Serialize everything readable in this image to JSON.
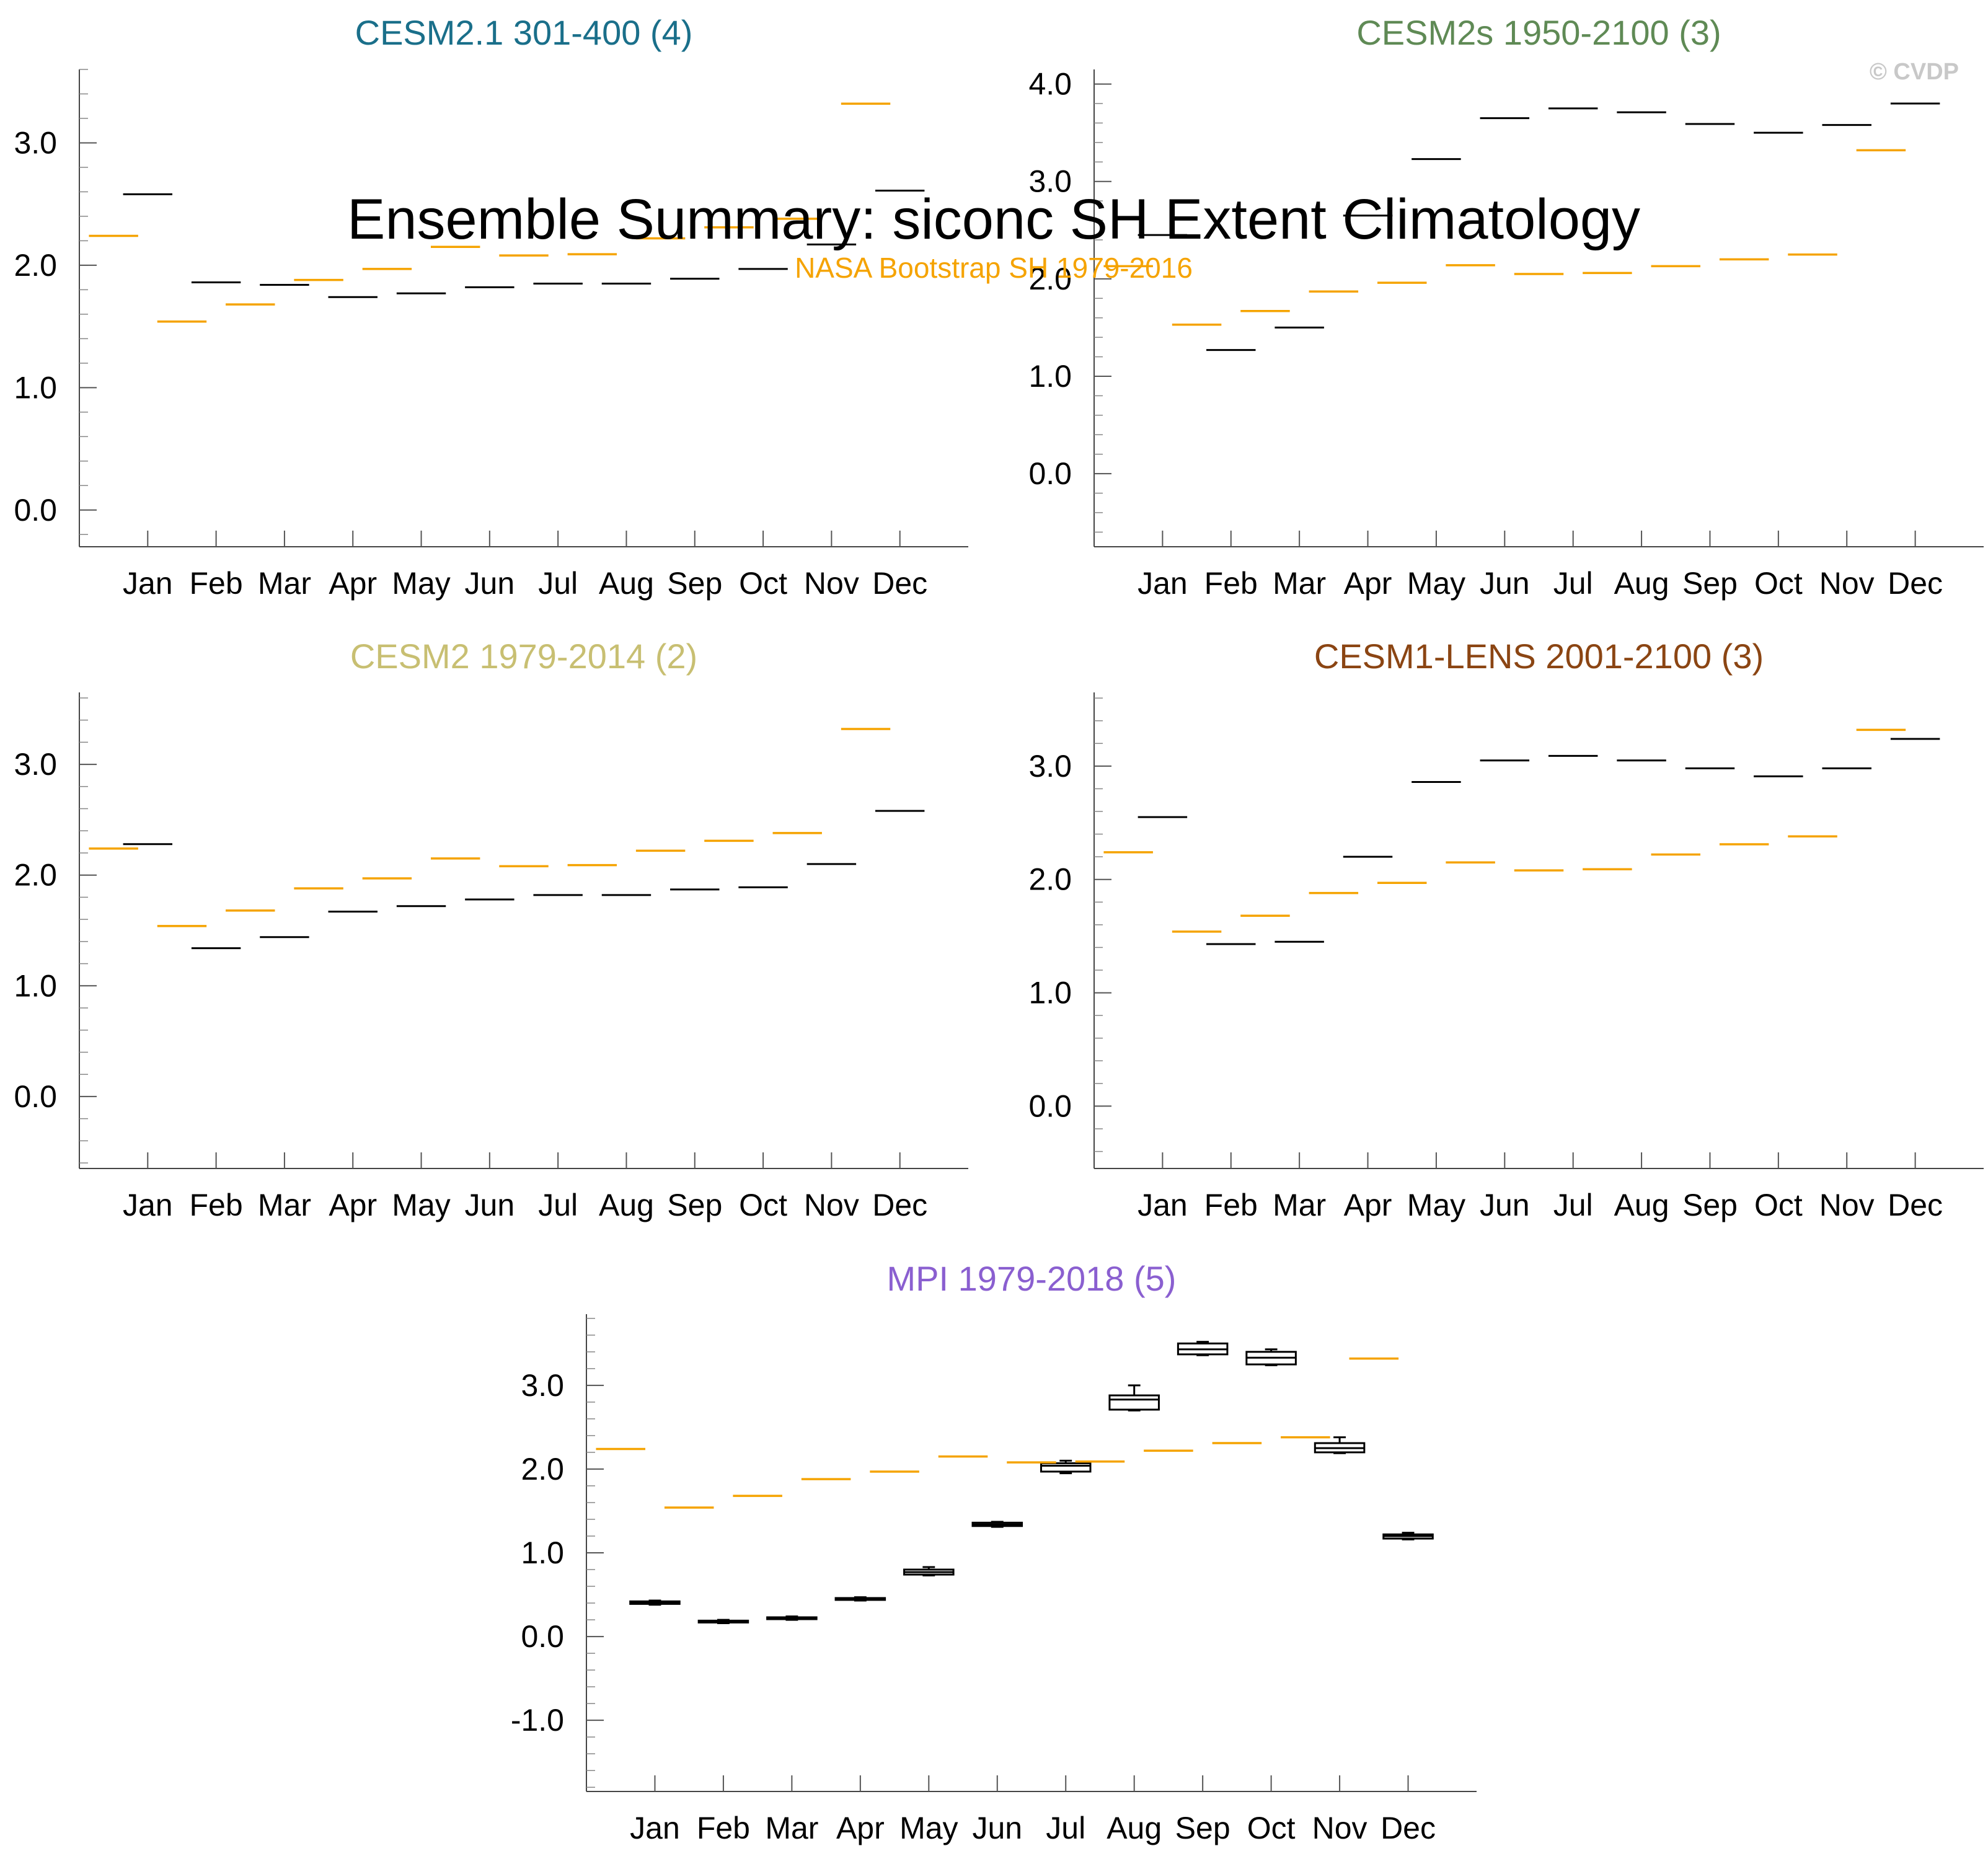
{
  "figure": {
    "title": "Ensemble Summary: siconc SH Extent Climatology",
    "observation_label": "NASA Bootstrap SH 1979-2016",
    "watermark": "© CVDP"
  },
  "colors": {
    "observation": "#f5a300",
    "model": "#000000",
    "title_cesm21": "#1a6f8a",
    "title_cesm2s": "#5f8a55",
    "title_cesm2": "#c8bf72",
    "title_cesm1": "#8b4513",
    "title_mpi": "#8a5fd0",
    "watermark": "#c8c8c8"
  },
  "chart_data": [
    {
      "type": "box",
      "title": "CESM2.1 301-400 (4)",
      "categories": [
        "Jan",
        "Feb",
        "Mar",
        "Apr",
        "May",
        "Jun",
        "Jul",
        "Aug",
        "Sep",
        "Oct",
        "Nov",
        "Dec"
      ],
      "ylim": [
        -0.3,
        3.6
      ],
      "yticks": [
        0.0,
        1.0,
        2.0,
        3.0
      ],
      "ytick_labels": [
        "0.0",
        "1.0",
        "2.0",
        "3.0"
      ],
      "series": [
        {
          "role": "model",
          "values": [
            2.58,
            1.86,
            1.84,
            1.74,
            1.77,
            1.82,
            1.85,
            1.85,
            1.89,
            1.97,
            2.17,
            2.61
          ]
        },
        {
          "role": "observation",
          "values": [
            2.24,
            1.54,
            1.68,
            1.88,
            1.97,
            2.15,
            2.08,
            2.09,
            2.22,
            2.31,
            2.38,
            3.32
          ]
        }
      ]
    },
    {
      "type": "box",
      "title": "CESM2s 1950-2100 (3)",
      "categories": [
        "Jan",
        "Feb",
        "Mar",
        "Apr",
        "May",
        "Jun",
        "Jul",
        "Aug",
        "Sep",
        "Oct",
        "Nov",
        "Dec"
      ],
      "ylim": [
        -0.75,
        4.15
      ],
      "yticks": [
        0.0,
        1.0,
        2.0,
        3.0,
        4.0
      ],
      "ytick_labels": [
        "0.0",
        "1.0",
        "2.0",
        "3.0",
        "4.0"
      ],
      "series": [
        {
          "role": "model",
          "values": [
            2.45,
            1.27,
            1.5,
            2.65,
            3.23,
            3.65,
            3.75,
            3.71,
            3.59,
            3.5,
            3.58,
            3.8
          ]
        },
        {
          "role": "observation",
          "values": [
            2.13,
            1.53,
            1.67,
            1.87,
            1.96,
            2.14,
            2.05,
            2.06,
            2.13,
            2.2,
            2.25,
            3.32
          ]
        }
      ]
    },
    {
      "type": "box",
      "title": "CESM2 1979-2014 (2)",
      "categories": [
        "Jan",
        "Feb",
        "Mar",
        "Apr",
        "May",
        "Jun",
        "Jul",
        "Aug",
        "Sep",
        "Oct",
        "Nov",
        "Dec"
      ],
      "ylim": [
        -0.65,
        3.65
      ],
      "yticks": [
        0.0,
        1.0,
        2.0,
        3.0
      ],
      "ytick_labels": [
        "0.0",
        "1.0",
        "2.0",
        "3.0"
      ],
      "series": [
        {
          "role": "model",
          "values": [
            2.28,
            1.34,
            1.44,
            1.67,
            1.72,
            1.78,
            1.82,
            1.82,
            1.87,
            1.89,
            2.1,
            2.58
          ]
        },
        {
          "role": "observation",
          "values": [
            2.24,
            1.54,
            1.68,
            1.88,
            1.97,
            2.15,
            2.08,
            2.09,
            2.22,
            2.31,
            2.38,
            3.32
          ]
        }
      ]
    },
    {
      "type": "box",
      "title": "CESM1-LENS 2001-2100 (3)",
      "categories": [
        "Jan",
        "Feb",
        "Mar",
        "Apr",
        "May",
        "Jun",
        "Jul",
        "Aug",
        "Sep",
        "Oct",
        "Nov",
        "Dec"
      ],
      "ylim": [
        -0.55,
        3.65
      ],
      "yticks": [
        0.0,
        1.0,
        2.0,
        3.0
      ],
      "ytick_labels": [
        "0.0",
        "1.0",
        "2.0",
        "3.0"
      ],
      "series": [
        {
          "role": "model",
          "values": [
            2.55,
            1.43,
            1.45,
            2.2,
            2.86,
            3.05,
            3.09,
            3.05,
            2.98,
            2.91,
            2.98,
            3.24
          ]
        },
        {
          "role": "observation",
          "values": [
            2.24,
            1.54,
            1.68,
            1.88,
            1.97,
            2.15,
            2.08,
            2.09,
            2.22,
            2.31,
            2.38,
            3.32
          ]
        }
      ]
    },
    {
      "type": "box",
      "title": "MPI 1979-2018 (5)",
      "categories": [
        "Jan",
        "Feb",
        "Mar",
        "Apr",
        "May",
        "Jun",
        "Jul",
        "Aug",
        "Sep",
        "Oct",
        "Nov",
        "Dec"
      ],
      "ylim": [
        -1.85,
        3.85
      ],
      "yticks": [
        -1.0,
        0.0,
        1.0,
        2.0,
        3.0
      ],
      "ytick_labels": [
        "-1.0",
        "0.0",
        "1.0",
        "2.0",
        "3.0"
      ],
      "series": [
        {
          "role": "model",
          "boxes": [
            {
              "min": 0.38,
              "q1": 0.39,
              "median": 0.4,
              "q3": 0.42,
              "max": 0.43
            },
            {
              "min": 0.16,
              "q1": 0.17,
              "median": 0.18,
              "q3": 0.19,
              "max": 0.2
            },
            {
              "min": 0.2,
              "q1": 0.21,
              "median": 0.22,
              "q3": 0.23,
              "max": 0.24
            },
            {
              "min": 0.43,
              "q1": 0.44,
              "median": 0.45,
              "q3": 0.46,
              "max": 0.47
            },
            {
              "min": 0.73,
              "q1": 0.74,
              "median": 0.77,
              "q3": 0.8,
              "max": 0.83
            },
            {
              "min": 1.31,
              "q1": 1.32,
              "median": 1.34,
              "q3": 1.36,
              "max": 1.37
            },
            {
              "min": 1.95,
              "q1": 1.97,
              "median": 2.04,
              "q3": 2.07,
              "max": 2.1
            },
            {
              "min": 2.7,
              "q1": 2.71,
              "median": 2.83,
              "q3": 2.88,
              "max": 3.0
            },
            {
              "min": 3.36,
              "q1": 3.37,
              "median": 3.43,
              "q3": 3.5,
              "max": 3.52
            },
            {
              "min": 3.24,
              "q1": 3.25,
              "median": 3.33,
              "q3": 3.4,
              "max": 3.43
            },
            {
              "min": 2.19,
              "q1": 2.2,
              "median": 2.25,
              "q3": 2.31,
              "max": 2.38
            },
            {
              "min": 1.16,
              "q1": 1.17,
              "median": 1.2,
              "q3": 1.22,
              "max": 1.24
            }
          ]
        },
        {
          "role": "observation",
          "values": [
            2.24,
            1.54,
            1.68,
            1.88,
            1.97,
            2.15,
            2.08,
            2.09,
            2.22,
            2.31,
            2.38,
            3.32
          ]
        }
      ]
    }
  ]
}
